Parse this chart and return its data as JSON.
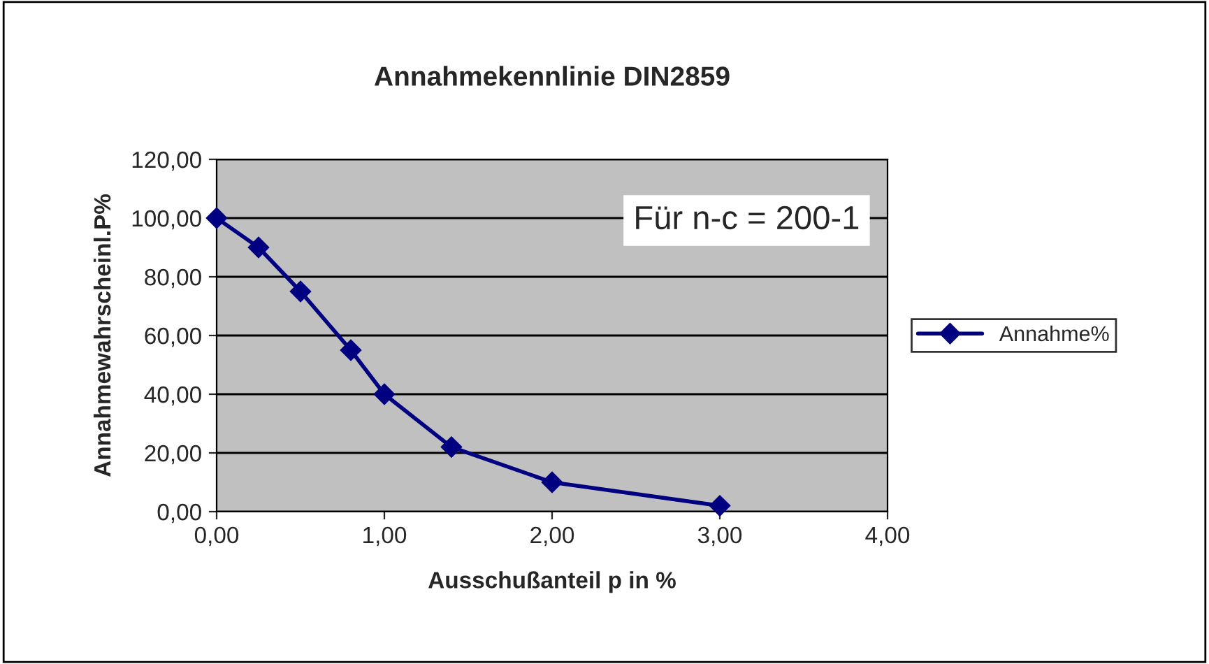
{
  "chart_data": {
    "type": "line",
    "title": "Annahmekennlinie DIN2859",
    "xlabel": "Ausschußanteil p in %",
    "ylabel": "Annahmewahrscheinl.P%",
    "annotations": [
      "Für n-c = 200-1"
    ],
    "x": [
      0,
      0.25,
      0.5,
      0.8,
      1.0,
      1.4,
      2.0,
      3.0
    ],
    "series": [
      {
        "name": "Annahme%",
        "color": "#000080",
        "values": [
          100,
          90,
          75,
          55,
          40,
          22,
          10,
          2
        ]
      }
    ],
    "xlim": [
      0,
      4
    ],
    "xticks": [
      {
        "value": 0,
        "label": "0,00"
      },
      {
        "value": 1,
        "label": "1,00"
      },
      {
        "value": 2,
        "label": "2,00"
      },
      {
        "value": 3,
        "label": "3,00"
      },
      {
        "value": 4,
        "label": "4,00"
      }
    ],
    "ylim": [
      0,
      120
    ],
    "yticks": [
      {
        "value": 0,
        "label": "0,00"
      },
      {
        "value": 20,
        "label": "20,00"
      },
      {
        "value": 40,
        "label": "40,00"
      },
      {
        "value": 60,
        "label": "60,00"
      },
      {
        "value": 80,
        "label": "80,00"
      },
      {
        "value": 100,
        "label": "100,00"
      },
      {
        "value": 120,
        "label": "120,00"
      }
    ],
    "grid": "y",
    "legend": "right",
    "marker": "diamond",
    "line_style": "solid"
  }
}
